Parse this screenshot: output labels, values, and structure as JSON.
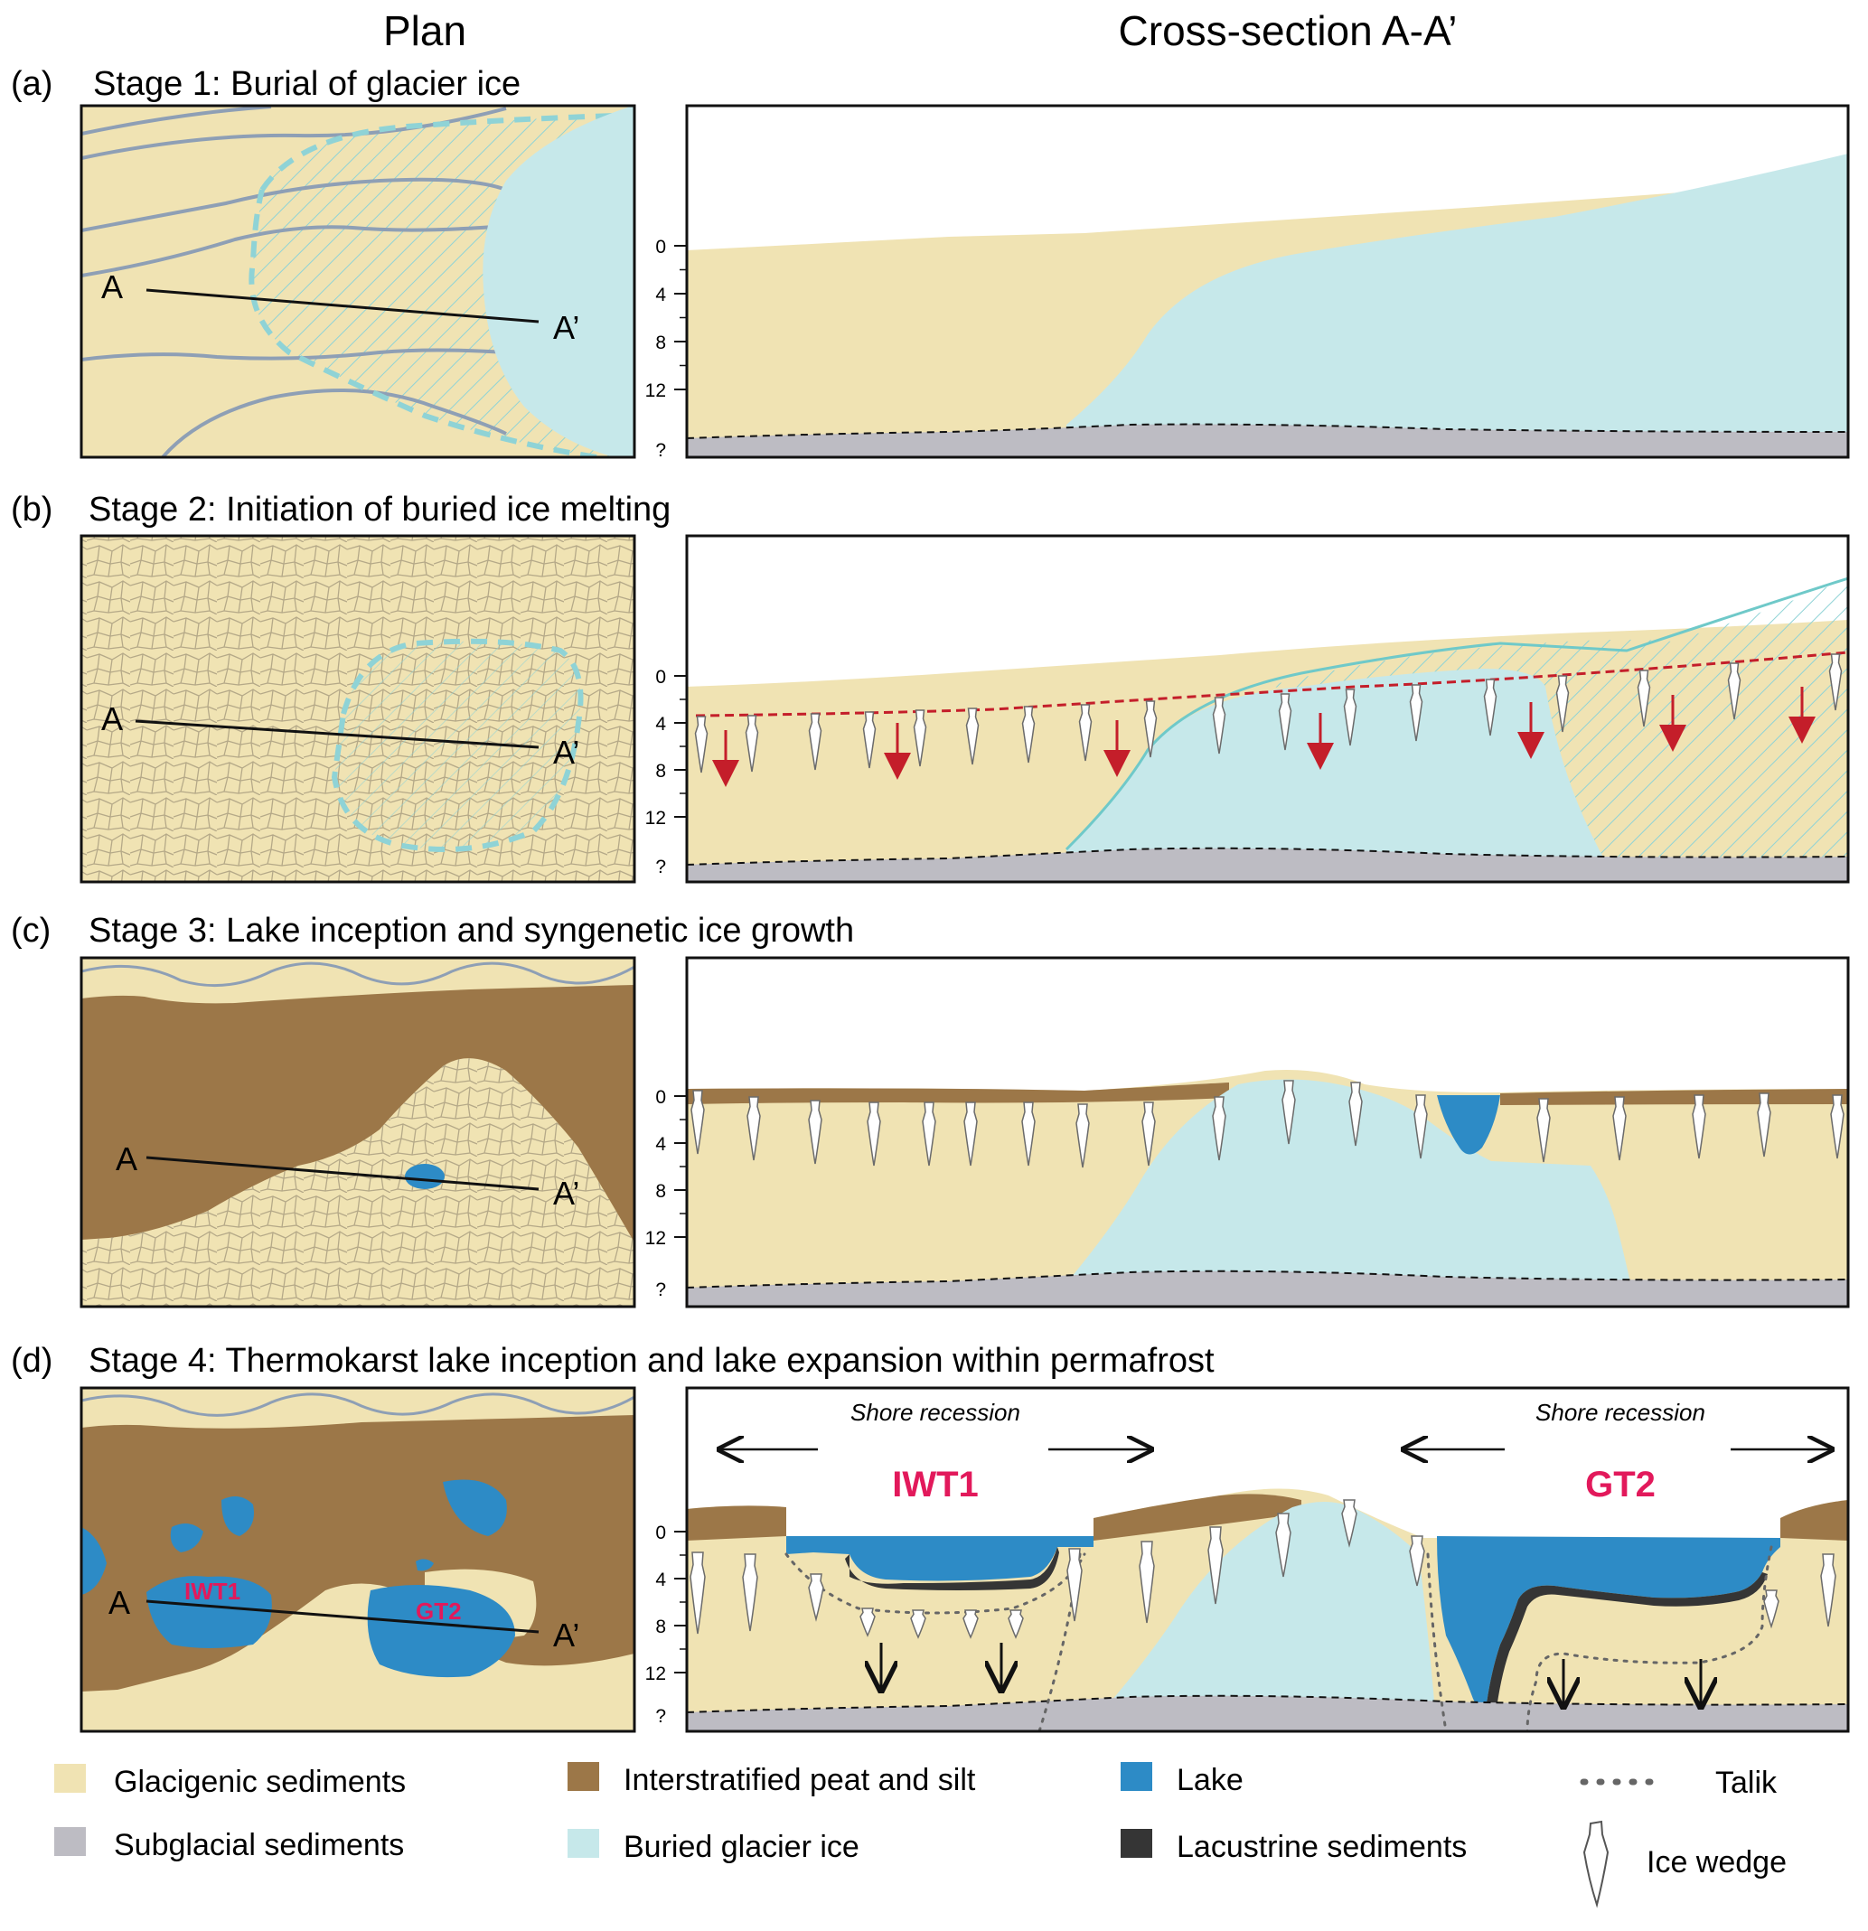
{
  "columns": {
    "plan": "Plan",
    "section": "Cross-section A-A’"
  },
  "stages": [
    {
      "letter": "(a)",
      "title": "Stage 1: Burial of glacier ice"
    },
    {
      "letter": "(b)",
      "title": "Stage 2: Initiation of buried ice melting"
    },
    {
      "letter": "(c)",
      "title": "Stage 3: Lake inception and syngenetic ice growth"
    },
    {
      "letter": "(d)",
      "title": "Stage 4: Thermokarst lake inception and lake expansion within permafrost"
    }
  ],
  "points": {
    "a": "A",
    "a_prime": "A’"
  },
  "depth_ticks": [
    "0",
    "4",
    "8",
    "12",
    "?"
  ],
  "lakes": {
    "iwt1": "IWT1",
    "gt2": "GT2"
  },
  "shore_recession": "Shore recession",
  "legend": {
    "glacigenic": "Glacigenic sediments",
    "subglacial": "Subglacial sediments",
    "peat": "Interstratified peat and silt",
    "ice": "Buried glacier ice",
    "lake": "Lake",
    "lacustrine": "Lacustrine sediments",
    "talik": "Talik",
    "icewedge": "Ice wedge"
  },
  "colors": {
    "glacigenic": "#f0e3b3",
    "subglacial": "#bdbcc3",
    "peat": "#9c7748",
    "ice": "#c6e8ea",
    "lake": "#2d8bc6",
    "lacustrine": "#353535",
    "arrow_red": "#c41e2a",
    "lake_label": "#e2195b"
  }
}
